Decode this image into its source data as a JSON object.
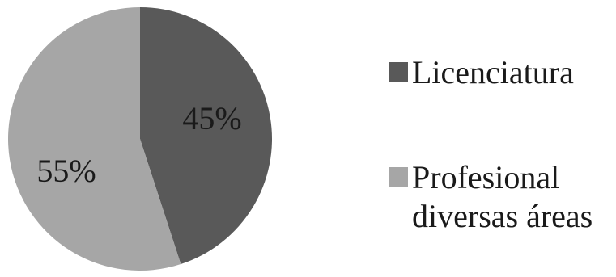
{
  "chart_data": {
    "type": "pie",
    "title": "",
    "slices": [
      {
        "label": "Licenciatura",
        "value": 45,
        "display": "45%",
        "color": "#595959"
      },
      {
        "label": "Profesional diversas áreas",
        "value": 55,
        "display": "55%",
        "color": "#a6a6a6"
      }
    ],
    "legend": {
      "position": "right",
      "items": [
        {
          "lines": [
            "Licenciatura"
          ],
          "color": "#595959"
        },
        {
          "lines": [
            "Profesional",
            "diversas áreas"
          ],
          "color": "#a6a6a6"
        }
      ]
    }
  }
}
